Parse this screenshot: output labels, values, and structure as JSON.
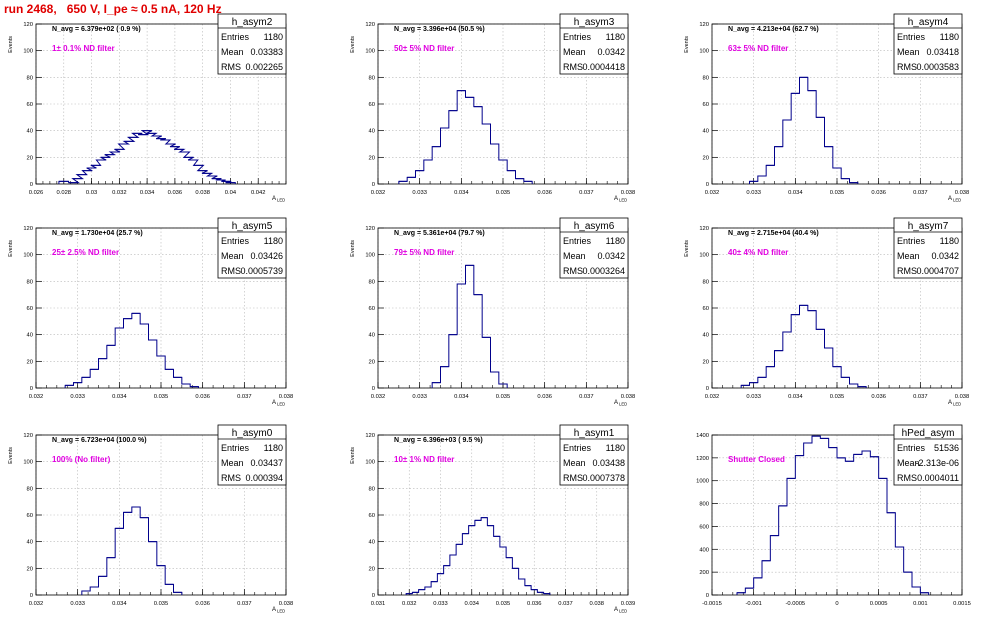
{
  "title": "run 2468,   650 V, I_pe ≈ 0.5 nA, 120 Hz",
  "stat_labels": {
    "entries": "Entries",
    "mean": "Mean",
    "rms": "RMS"
  },
  "colors": {
    "hist": "#00008b",
    "annotation": "#e000e0",
    "title": "#e00000",
    "grid": "#b8b8b8"
  },
  "chart_data": [
    {
      "type": "bar",
      "name": "h_asym2",
      "n_avg": "N_avg = 6.379e+02 ( 0.9 %)",
      "filter": "1± 0.1% ND filter",
      "stats": {
        "entries": "1180",
        "mean": "0.03383",
        "rms": "0.002265"
      },
      "ylabel": "Events",
      "xlabel": "A_LED",
      "xlim": [
        0.026,
        0.044
      ],
      "ylim": [
        0,
        120
      ],
      "xticks": [
        0.026,
        0.028,
        0.03,
        0.032,
        0.034,
        0.036,
        0.038,
        0.04,
        0.042
      ],
      "xtick_labels": [
        "0.026",
        "0.028",
        "0.03",
        "0.032",
        "0.034",
        "0.036",
        "0.038",
        "0.04",
        "0.042"
      ],
      "yticks": [
        0,
        20,
        40,
        60,
        80,
        100,
        120
      ],
      "x": [
        0.028,
        0.0287,
        0.029,
        0.0293,
        0.0297,
        0.03,
        0.0303,
        0.0307,
        0.031,
        0.0313,
        0.0317,
        0.032,
        0.0323,
        0.0327,
        0.033,
        0.0333,
        0.0337,
        0.034,
        0.0343,
        0.0347,
        0.035,
        0.0353,
        0.0357,
        0.036,
        0.0363,
        0.0367,
        0.037,
        0.0373,
        0.0377,
        0.038,
        0.0383,
        0.0387,
        0.039,
        0.0393,
        0.0397,
        0.04
      ],
      "values": [
        2,
        1,
        4,
        7,
        10,
        12,
        14,
        18,
        20,
        22,
        24,
        26,
        30,
        32,
        35,
        38,
        37,
        40,
        38,
        36,
        34,
        33,
        30,
        28,
        26,
        24,
        20,
        18,
        14,
        10,
        8,
        6,
        4,
        3,
        2,
        1
      ]
    },
    {
      "type": "bar",
      "name": "h_asym3",
      "n_avg": "N_avg = 3.396e+04 (50.5 %)",
      "filter": "50± 5% ND filter",
      "stats": {
        "entries": "1180",
        "mean": "0.0342",
        "rms": "0.0004418"
      },
      "ylabel": "Events",
      "xlabel": "A_LED",
      "xlim": [
        0.032,
        0.038
      ],
      "ylim": [
        0,
        120
      ],
      "xticks": [
        0.032,
        0.033,
        0.034,
        0.035,
        0.036,
        0.037,
        0.038
      ],
      "xtick_labels": [
        "0.032",
        "0.033",
        "0.034",
        "0.035",
        "0.036",
        "0.037",
        "0.038"
      ],
      "yticks": [
        0,
        20,
        40,
        60,
        80,
        100,
        120
      ],
      "x": [
        0.0326,
        0.0328,
        0.033,
        0.0332,
        0.0334,
        0.0336,
        0.0338,
        0.034,
        0.0342,
        0.0344,
        0.0346,
        0.0348,
        0.035,
        0.0352,
        0.0354,
        0.0356
      ],
      "values": [
        2,
        5,
        10,
        18,
        28,
        42,
        55,
        70,
        65,
        58,
        45,
        30,
        18,
        10,
        4,
        2
      ]
    },
    {
      "type": "bar",
      "name": "h_asym4",
      "n_avg": "N_avg = 4.213e+04 (62.7 %)",
      "filter": "63± 5% ND filter",
      "stats": {
        "entries": "1180",
        "mean": "0.03418",
        "rms": "0.0003583"
      },
      "ylabel": "Events",
      "xlabel": "A_LED",
      "xlim": [
        0.032,
        0.038
      ],
      "ylim": [
        0,
        120
      ],
      "xticks": [
        0.032,
        0.033,
        0.034,
        0.035,
        0.036,
        0.037,
        0.038
      ],
      "xtick_labels": [
        "0.032",
        "0.033",
        "0.034",
        "0.035",
        "0.036",
        "0.037",
        "0.038"
      ],
      "yticks": [
        0,
        20,
        40,
        60,
        80,
        100,
        120
      ],
      "x": [
        0.033,
        0.0332,
        0.0334,
        0.0336,
        0.0338,
        0.034,
        0.0342,
        0.0344,
        0.0346,
        0.0348,
        0.035,
        0.0352,
        0.0354
      ],
      "values": [
        2,
        6,
        14,
        28,
        48,
        68,
        80,
        70,
        50,
        28,
        12,
        4,
        1
      ]
    },
    {
      "type": "bar",
      "name": "h_asym5",
      "n_avg": "N_avg = 1.730e+04 (25.7 %)",
      "filter": "25± 2.5% ND filter",
      "stats": {
        "entries": "1180",
        "mean": "0.03426",
        "rms": "0.0005739"
      },
      "ylabel": "Events",
      "xlabel": "A_LED",
      "xlim": [
        0.032,
        0.038
      ],
      "ylim": [
        0,
        120
      ],
      "xticks": [
        0.032,
        0.033,
        0.034,
        0.035,
        0.036,
        0.037,
        0.038
      ],
      "xtick_labels": [
        "0.032",
        "0.033",
        "0.034",
        "0.035",
        "0.036",
        "0.037",
        "0.038"
      ],
      "yticks": [
        0,
        20,
        40,
        60,
        80,
        100,
        120
      ],
      "x": [
        0.0328,
        0.033,
        0.0332,
        0.0334,
        0.0336,
        0.0338,
        0.034,
        0.0342,
        0.0344,
        0.0346,
        0.0348,
        0.035,
        0.0352,
        0.0354,
        0.0356,
        0.0358
      ],
      "values": [
        2,
        4,
        8,
        14,
        22,
        32,
        45,
        52,
        56,
        48,
        36,
        24,
        14,
        8,
        3,
        1
      ]
    },
    {
      "type": "bar",
      "name": "h_asym6",
      "n_avg": "N_avg = 5.361e+04 (79.7 %)",
      "filter": "79± 5% ND filter",
      "stats": {
        "entries": "1180",
        "mean": "0.0342",
        "rms": "0.0003264"
      },
      "ylabel": "Events",
      "xlabel": "A_LED",
      "xlim": [
        0.032,
        0.038
      ],
      "ylim": [
        0,
        120
      ],
      "xticks": [
        0.032,
        0.033,
        0.034,
        0.035,
        0.036,
        0.037,
        0.038
      ],
      "xtick_labels": [
        "0.032",
        "0.033",
        "0.034",
        "0.035",
        "0.036",
        "0.037",
        "0.038"
      ],
      "yticks": [
        0,
        20,
        40,
        60,
        80,
        100,
        120
      ],
      "x": [
        0.0334,
        0.0336,
        0.0338,
        0.034,
        0.0342,
        0.0344,
        0.0346,
        0.0348,
        0.035
      ],
      "values": [
        4,
        16,
        40,
        78,
        92,
        70,
        38,
        12,
        3
      ]
    },
    {
      "type": "bar",
      "name": "h_asym7",
      "n_avg": "N_avg = 2.715e+04 (40.4 %)",
      "filter": "40± 4% ND filter",
      "stats": {
        "entries": "1180",
        "mean": "0.0342",
        "rms": "0.0004707"
      },
      "ylabel": "Events",
      "xlabel": "A_LED",
      "xlim": [
        0.032,
        0.038
      ],
      "ylim": [
        0,
        120
      ],
      "xticks": [
        0.032,
        0.033,
        0.034,
        0.035,
        0.036,
        0.037,
        0.038
      ],
      "xtick_labels": [
        "0.032",
        "0.033",
        "0.034",
        "0.035",
        "0.036",
        "0.037",
        "0.038"
      ],
      "yticks": [
        0,
        20,
        40,
        60,
        80,
        100,
        120
      ],
      "x": [
        0.0328,
        0.033,
        0.0332,
        0.0334,
        0.0336,
        0.0338,
        0.034,
        0.0342,
        0.0344,
        0.0346,
        0.0348,
        0.035,
        0.0352,
        0.0354,
        0.0356
      ],
      "values": [
        2,
        4,
        8,
        16,
        28,
        42,
        55,
        62,
        58,
        44,
        30,
        16,
        8,
        3,
        1
      ]
    },
    {
      "type": "bar",
      "name": "h_asym0",
      "n_avg": "N_avg = 6.723e+04 (100.0 %)",
      "filter": "100% (No filter)",
      "stats": {
        "entries": "1180",
        "mean": "0.03437",
        "rms": "0.000394"
      },
      "ylabel": "Events",
      "xlabel": "A_LED",
      "xlim": [
        0.032,
        0.038
      ],
      "ylim": [
        0,
        120
      ],
      "xticks": [
        0.032,
        0.033,
        0.034,
        0.035,
        0.036,
        0.037,
        0.038
      ],
      "xtick_labels": [
        "0.032",
        "0.033",
        "0.034",
        "0.035",
        "0.036",
        "0.037",
        "0.038"
      ],
      "yticks": [
        0,
        20,
        40,
        60,
        80,
        100,
        120
      ],
      "x": [
        0.0332,
        0.0334,
        0.0336,
        0.0338,
        0.034,
        0.0342,
        0.0344,
        0.0346,
        0.0348,
        0.035,
        0.0352,
        0.0354
      ],
      "values": [
        3,
        6,
        14,
        28,
        50,
        62,
        66,
        58,
        40,
        22,
        8,
        2
      ]
    },
    {
      "type": "bar",
      "name": "h_asym1",
      "n_avg": "N_avg = 6.396e+03 ( 9.5 %)",
      "filter": "10± 1% ND filter",
      "stats": {
        "entries": "1180",
        "mean": "0.03438",
        "rms": "0.0007378"
      },
      "ylabel": "Events",
      "xlabel": "A_LED",
      "xlim": [
        0.031,
        0.039
      ],
      "ylim": [
        0,
        120
      ],
      "xticks": [
        0.031,
        0.032,
        0.033,
        0.034,
        0.035,
        0.036,
        0.037,
        0.038,
        0.039
      ],
      "xtick_labels": [
        "0.031",
        "0.032",
        "0.033",
        "0.034",
        "0.035",
        "0.036",
        "0.037",
        "0.038",
        "0.039"
      ],
      "yticks": [
        0,
        20,
        40,
        60,
        80,
        100,
        120
      ],
      "x": [
        0.032,
        0.0322,
        0.0324,
        0.0326,
        0.0328,
        0.033,
        0.0332,
        0.0334,
        0.0336,
        0.0338,
        0.034,
        0.0342,
        0.0344,
        0.0346,
        0.0348,
        0.035,
        0.0352,
        0.0354,
        0.0356,
        0.0358,
        0.036,
        0.0362,
        0.0364
      ],
      "values": [
        1,
        2,
        4,
        6,
        10,
        16,
        22,
        30,
        38,
        46,
        52,
        56,
        58,
        52,
        44,
        36,
        28,
        20,
        12,
        7,
        4,
        2,
        1
      ]
    },
    {
      "type": "bar",
      "name": "hPed_asym",
      "n_avg": "",
      "filter": "Shutter Closed",
      "stats": {
        "entries": "51536",
        "mean": "-2.313e-06",
        "rms": "0.0004011"
      },
      "ylabel": "",
      "xlabel": "",
      "xlim": [
        -0.0015,
        0.0015
      ],
      "ylim": [
        0,
        1400
      ],
      "xticks": [
        -0.0015,
        -0.001,
        -0.0005,
        0,
        0.0005,
        0.001,
        0.0015
      ],
      "xtick_labels": [
        "-0.0015",
        "-0.001",
        "-0.0005",
        "0",
        "0.0005",
        "0.001",
        "0.0015"
      ],
      "yticks": [
        0,
        200,
        400,
        600,
        800,
        1000,
        1200,
        1400
      ],
      "x": [
        -0.00115,
        -0.00105,
        -0.00095,
        -0.00085,
        -0.00075,
        -0.00065,
        -0.00055,
        -0.00045,
        -0.00035,
        -0.00025,
        -0.00015,
        -5e-05,
        5e-05,
        0.00015,
        0.00025,
        0.00035,
        0.00045,
        0.00055,
        0.00065,
        0.00075,
        0.00085,
        0.00095,
        0.00105
      ],
      "values": [
        20,
        60,
        150,
        300,
        520,
        780,
        1020,
        1220,
        1330,
        1390,
        1370,
        1290,
        1200,
        1170,
        1230,
        1260,
        1210,
        1020,
        720,
        420,
        200,
        70,
        20
      ]
    }
  ]
}
